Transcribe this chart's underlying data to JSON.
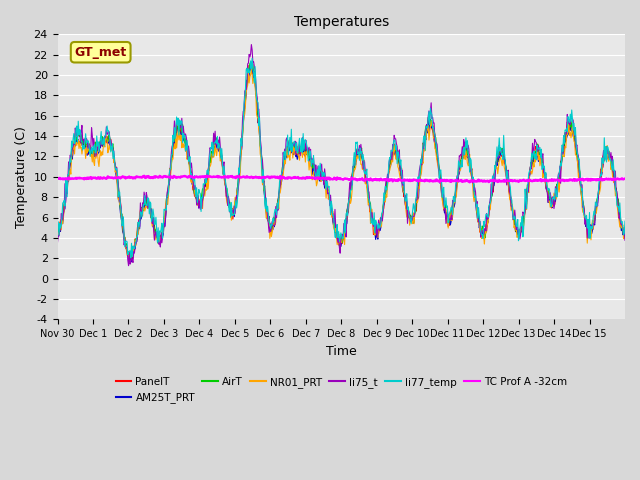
{
  "title": "Temperatures",
  "xlabel": "Time",
  "ylabel": "Temperature (C)",
  "ylim": [
    -4,
    24
  ],
  "annotation_text": "GT_met",
  "annotation_color": "#8B0000",
  "annotation_bg": "#FFFF99",
  "annotation_border": "#999900",
  "series_colors": {
    "PanelT": "#FF0000",
    "AM25T_PRT": "#0000CC",
    "AirT": "#00CC00",
    "NR01_PRT": "#FFA500",
    "li75_t": "#9900BB",
    "li77_temp": "#00CCCC",
    "TC Prof A -32cm": "#FF00FF"
  },
  "xtick_labels": [
    "Nov 30",
    "Dec 1",
    "Dec 2",
    "Dec 3",
    "Dec 4",
    "Dec 5",
    "Dec 6",
    "Dec 7",
    "Dec 8",
    "Dec 9",
    "Dec 10",
    "Dec 11",
    "Dec 12",
    "Dec 13",
    "Dec 14",
    "Dec 15"
  ],
  "xtick_positions": [
    0,
    1,
    2,
    3,
    4,
    5,
    6,
    7,
    8,
    9,
    10,
    11,
    12,
    13,
    14,
    15
  ],
  "fig_bg": "#D8D8D8",
  "ax_bg": "#E8E8E8",
  "grid_color": "#FFFFFF",
  "n_days": 16,
  "yticks": [
    -4,
    -2,
    0,
    2,
    4,
    6,
    8,
    10,
    12,
    14,
    16,
    18,
    20,
    22,
    24
  ]
}
